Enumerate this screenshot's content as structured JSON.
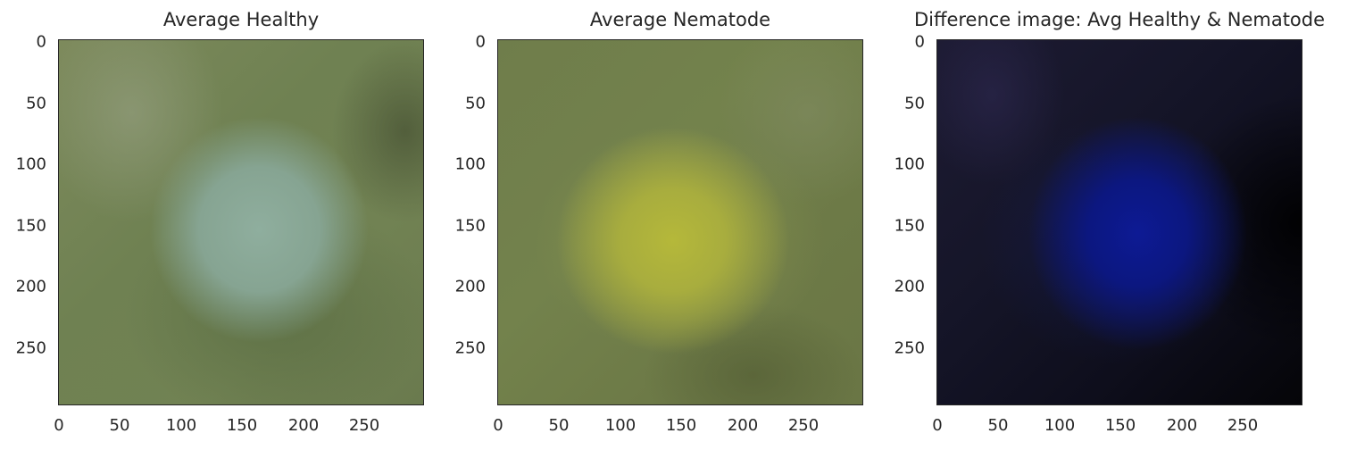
{
  "chart_data": [
    {
      "type": "heatmap",
      "title": "Average Healthy",
      "xlabel": "",
      "ylabel": "",
      "xlim": [
        0,
        299
      ],
      "ylim": [
        299,
        0
      ],
      "x_ticks": [
        "0",
        "50",
        "100",
        "150",
        "200",
        "250"
      ],
      "y_ticks": [
        "0",
        "50",
        "100",
        "150",
        "200",
        "250"
      ],
      "grid": false,
      "colors": {
        "background": "#6f7f52",
        "center_blob": "#8aa797"
      }
    },
    {
      "type": "heatmap",
      "title": "Average Nematode",
      "xlabel": "",
      "ylabel": "",
      "xlim": [
        0,
        299
      ],
      "ylim": [
        299,
        0
      ],
      "x_ticks": [
        "0",
        "50",
        "100",
        "150",
        "200",
        "250"
      ],
      "y_ticks": [
        "0",
        "50",
        "100",
        "150",
        "200",
        "250"
      ],
      "grid": false,
      "colors": {
        "background": "#6f7c4a",
        "center_blob": "#b0b43a"
      }
    },
    {
      "type": "heatmap",
      "title": "Difference image: Avg Healthy & Nematode",
      "xlabel": "",
      "ylabel": "",
      "xlim": [
        0,
        299
      ],
      "ylim": [
        299,
        0
      ],
      "x_ticks": [
        "0",
        "50",
        "100",
        "150",
        "200",
        "250"
      ],
      "y_ticks": [
        "0",
        "50",
        "100",
        "150",
        "200",
        "250"
      ],
      "grid": false,
      "colors": {
        "background": "#0f0f1c",
        "center_blob": "#0d1a8c"
      }
    }
  ]
}
